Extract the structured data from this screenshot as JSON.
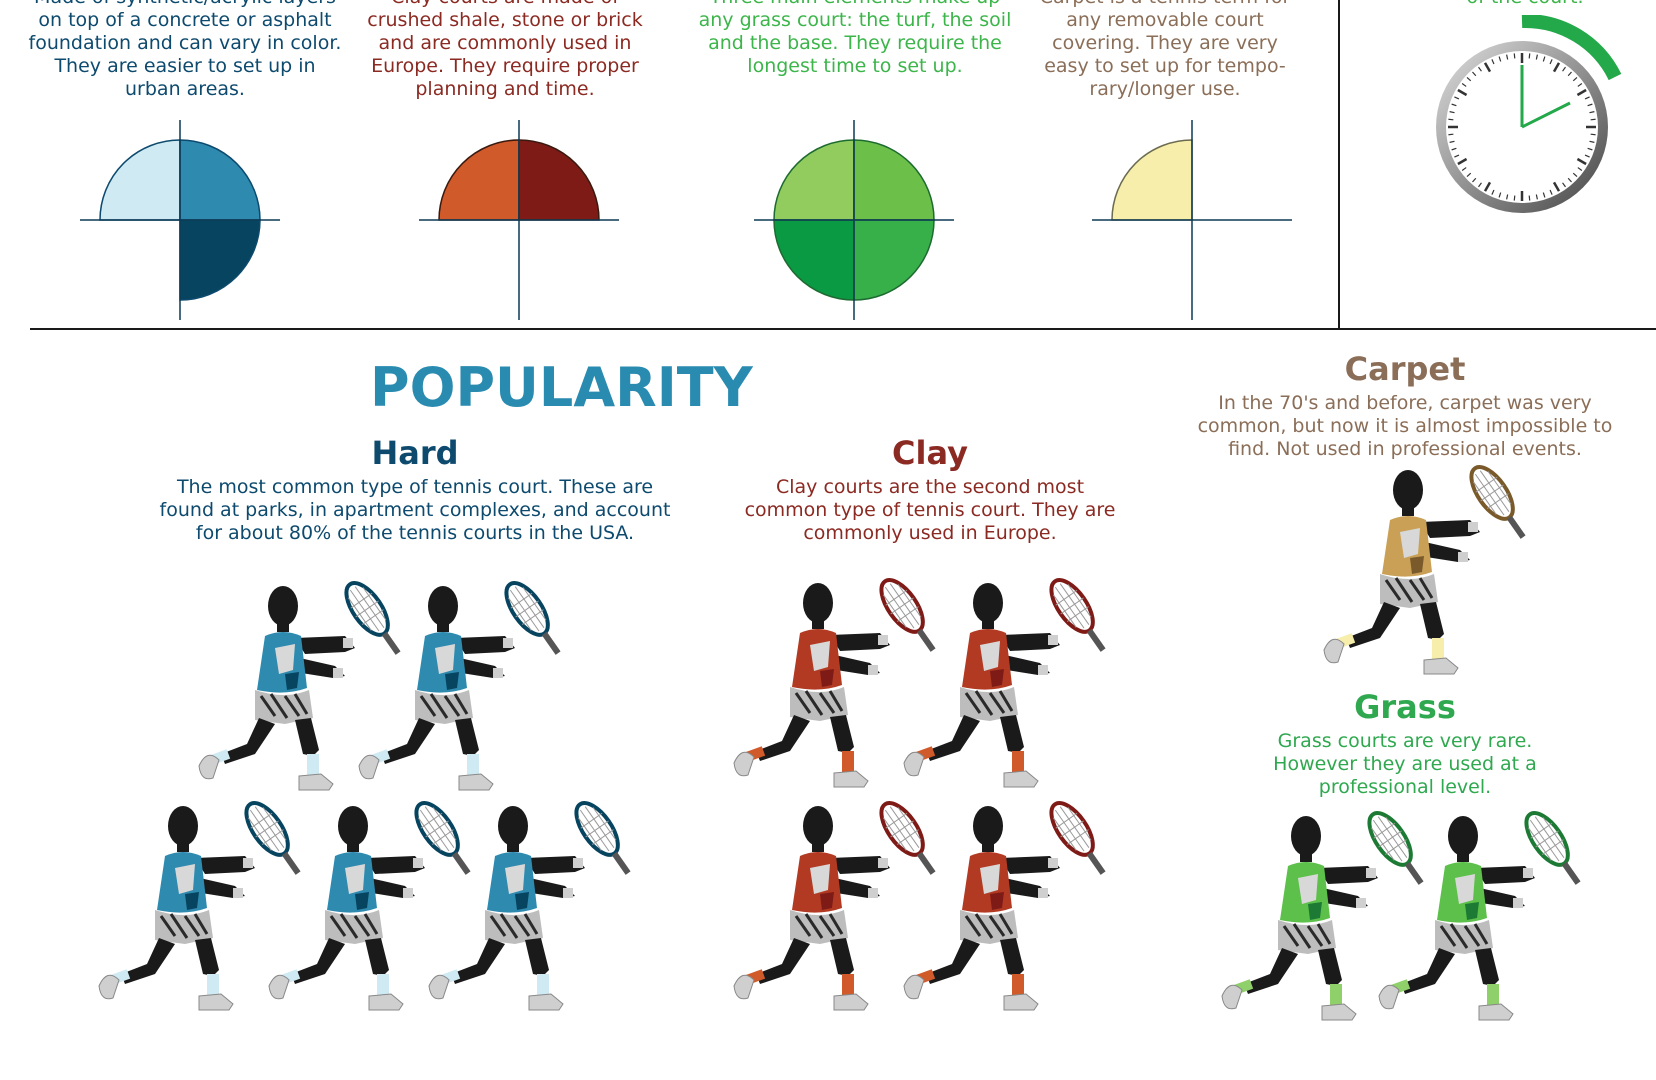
{
  "colors": {
    "hard": "#2f8ab0",
    "hard_light": "#cfeaf2",
    "hard_dark": "#06445f",
    "hard_text": "#0d4a6e",
    "clay": "#d05a2a",
    "clay_dark": "#7f1b17",
    "clay_text": "#8b2a22",
    "grass": "#3cb54a",
    "grass_light": "#8fcc5f",
    "grass_text": "#2fa84f",
    "carpet": "#f6eeaa",
    "carpet_text": "#8b6e58",
    "popularity_title": "#2a8bb0"
  },
  "top": {
    "hard_desc": "Made of synthetic/acrylic layers\non top of a concrete or asphalt\nfoundation and can vary in color.\nThey are easier to set up in\nurban areas.",
    "clay_desc": "Clay courts are made of\ncrushed shale, stone or brick\nand are commonly used in\nEurope. They require proper\nplanning and time.",
    "grass_desc": "Three main elements make up\nany grass court: the turf, the soil\nand the base. They require the\nlongest time to set up.",
    "carpet_desc": "Carpet is a tennis term for\nany removable court\ncovering. They are very\neasy to set up for tempo-\nrary/longer use.",
    "clock_caption": "of the court."
  },
  "popularity": {
    "title": "POPULARITY",
    "hard": {
      "title": "Hard",
      "desc": "The most common type of tennis court. These are\nfound at parks, in apartment complexes, and account\nfor about 80% of the tennis courts in the USA.",
      "player_count": 5
    },
    "clay": {
      "title": "Clay",
      "desc": "Clay courts are the second most\ncommon type of tennis court. They are\ncommonly used in Europe.",
      "player_count": 4
    },
    "carpet": {
      "title": "Carpet",
      "desc": "In the 70's and before, carpet was very\ncommon, but now it is almost impossible to\nfind. Not used in professional events.",
      "player_count": 1
    },
    "grass": {
      "title": "Grass",
      "desc": "Grass courts are very rare.\nHowever they are used at a\nprofessional level.",
      "player_count": 2
    }
  },
  "icons": {
    "player": "tennis-player-icon",
    "clock": "clock-icon",
    "quadrant": "quadrant-chart-icon"
  }
}
